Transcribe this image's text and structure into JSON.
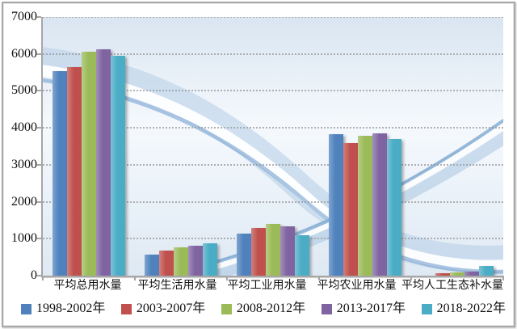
{
  "chart_data": {
    "type": "bar",
    "title": "",
    "xlabel": "",
    "ylabel": "",
    "categories": [
      "平均总用水量",
      "平均生活用水量",
      "平均工业用水量",
      "平均农业用水量",
      "平均人工生态补水量"
    ],
    "series": [
      {
        "name": "1998-2002年",
        "color": "#4F81BD",
        "values": [
          5530,
          580,
          1140,
          3840,
          0
        ]
      },
      {
        "name": "2003-2007年",
        "color": "#C0504D",
        "values": [
          5640,
          680,
          1290,
          3580,
          75
        ]
      },
      {
        "name": "2008-2012年",
        "color": "#9BBB59",
        "values": [
          6060,
          765,
          1410,
          3780,
          95
        ]
      },
      {
        "name": "2013-2017年",
        "color": "#8064A2",
        "values": [
          6120,
          800,
          1330,
          3860,
          120
        ]
      },
      {
        "name": "2018-2022年",
        "color": "#4BACC6",
        "values": [
          5950,
          880,
          1100,
          3700,
          255
        ]
      }
    ],
    "ylim": [
      0,
      7000
    ],
    "ytick_step": 1000,
    "ytick_labels": [
      "0",
      "1000",
      "2000",
      "3000",
      "4000",
      "5000",
      "6000",
      "7000"
    ],
    "grid": "horizontal-dotted",
    "legend_position": "bottom"
  },
  "style": {
    "frame_border": "#a9a9a9",
    "axis_color": "#a6a6a6",
    "grid_color": "#999999",
    "text_color": "#111111",
    "plot_bg_top": "#d9e5f1",
    "plot_bg_mid": "#f5f9fd",
    "plot_bg_bottom": "#dfe9f3",
    "wave_light": "#b9d0e8",
    "wave_white": "#ffffff",
    "wave_dark": "#7fa8d2"
  }
}
